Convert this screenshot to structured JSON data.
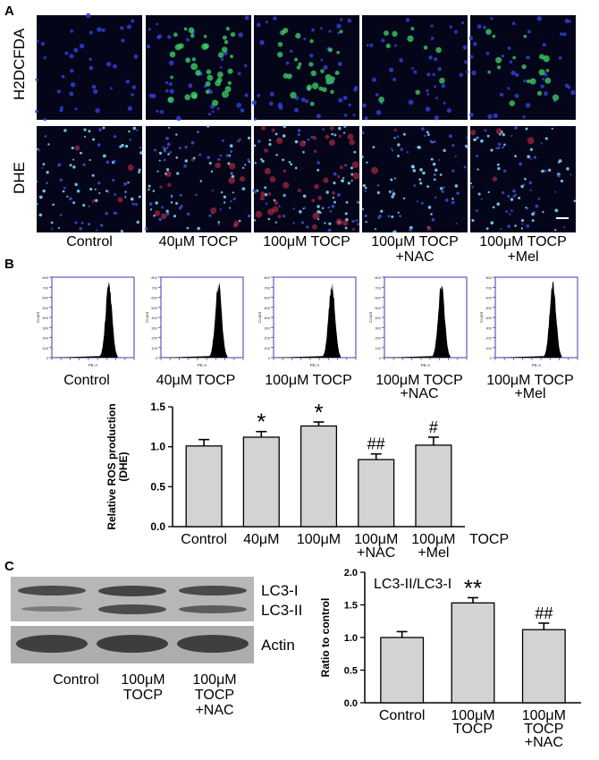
{
  "panel_a": {
    "label": "A",
    "row_labels": [
      "H2DCFDA",
      "DHE"
    ],
    "conditions": [
      "Control",
      "40μM TOCP",
      "100μM TOCP",
      "100μM TOCP\n+NAC",
      "100μM TOCP\n+Mel"
    ],
    "colors": {
      "background": "#05051a",
      "nuclei": "#2f3fd6",
      "dcf": "#3fd66a",
      "dhe_nuclei": "#7fe0ff",
      "dhe_red": "#d6324a"
    }
  },
  "panel_b": {
    "label": "B",
    "flow_labels": [
      "Control",
      "40μM TOCP",
      "100μM TOCP",
      "100μM TOCP\n+NAC",
      "100μM TOCP\n+Mel"
    ],
    "flow_axis": {
      "ylabel": "Count",
      "xlabel": "PE-A",
      "yticks": [
        "0",
        "100",
        "200",
        "300",
        "400",
        "500",
        "600",
        "700",
        "800"
      ]
    },
    "peak_positions_log": [
      4.85,
      4.9,
      4.95,
      4.85,
      4.9
    ]
  },
  "panel_c": {
    "label": "C",
    "blot_labels": [
      "LC3-I",
      "LC3-II",
      "Actin"
    ],
    "lane_labels": [
      "Control",
      "100μM\nTOCP",
      "100μM\nTOCP\n+NAC"
    ]
  },
  "chart_data": [
    {
      "type": "bar",
      "title": "",
      "ylabel": "Relative ROS production\n(DHE)",
      "xlabel": "TOCP",
      "categories": [
        "Control",
        "40μM",
        "100μM",
        "100μM\n+NAC",
        "100μM\n+Mel"
      ],
      "values": [
        1.01,
        1.12,
        1.26,
        0.84,
        1.02
      ],
      "errors": [
        0.08,
        0.07,
        0.05,
        0.07,
        0.1
      ],
      "annotations": [
        "",
        "*",
        "*",
        "##",
        "#"
      ],
      "ylim": [
        0.0,
        1.5
      ],
      "yticks": [
        "0.0",
        "0.5",
        "1.0",
        "1.5"
      ],
      "bar_color": "#d3d3d3"
    },
    {
      "type": "bar",
      "title": "LC3-II/LC3-I",
      "ylabel": "Ratio to control",
      "categories": [
        "Control",
        "100μM\nTOCP",
        "100μM\nTOCP\n+NAC"
      ],
      "values": [
        1.0,
        1.53,
        1.12
      ],
      "errors": [
        0.09,
        0.08,
        0.1
      ],
      "annotations": [
        "",
        "**",
        "##"
      ],
      "ylim": [
        0.0,
        2.0
      ],
      "yticks": [
        "0.0",
        "0.5",
        "1.0",
        "1.5",
        "2.0"
      ],
      "bar_color": "#d3d3d3"
    }
  ]
}
